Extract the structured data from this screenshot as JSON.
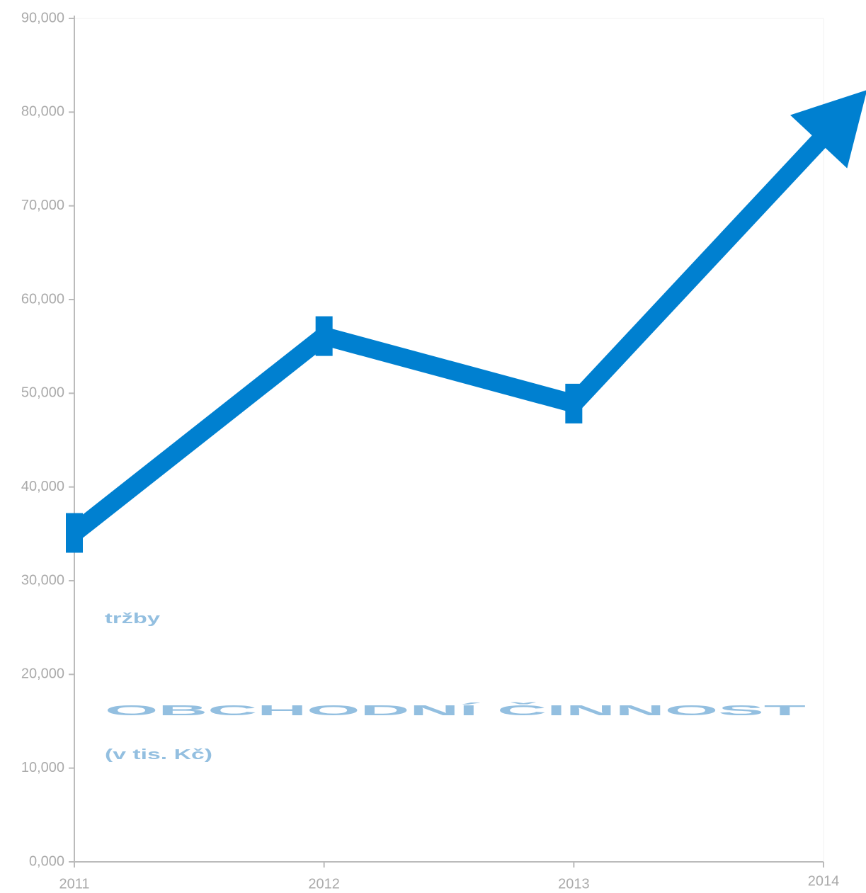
{
  "chart_data": {
    "type": "line",
    "title": "OBCHODNÍ ČINNOST",
    "subtitle": "tržby",
    "unit_label": "(v tis. Kč)",
    "categories": [
      "2011",
      "2012",
      "2013",
      "2014"
    ],
    "series": [
      {
        "name": "tržby",
        "color": "#0080d0",
        "values": [
          35100,
          56100,
          48900,
          77400
        ]
      }
    ],
    "ylim": [
      0,
      90000
    ],
    "yticks": [
      {
        "value": 0,
        "label": "0,000"
      },
      {
        "value": 10000,
        "label": "10,000"
      },
      {
        "value": 20000,
        "label": "20,000"
      },
      {
        "value": 30000,
        "label": "30,000"
      },
      {
        "value": 40000,
        "label": "40,000"
      },
      {
        "value": 50000,
        "label": "50,000"
      },
      {
        "value": 60000,
        "label": "60,000"
      },
      {
        "value": 70000,
        "label": "70,000"
      },
      {
        "value": 80000,
        "label": "80,000"
      },
      {
        "value": 90000,
        "label": "90,000"
      }
    ],
    "title_color": "#93bfe0"
  }
}
